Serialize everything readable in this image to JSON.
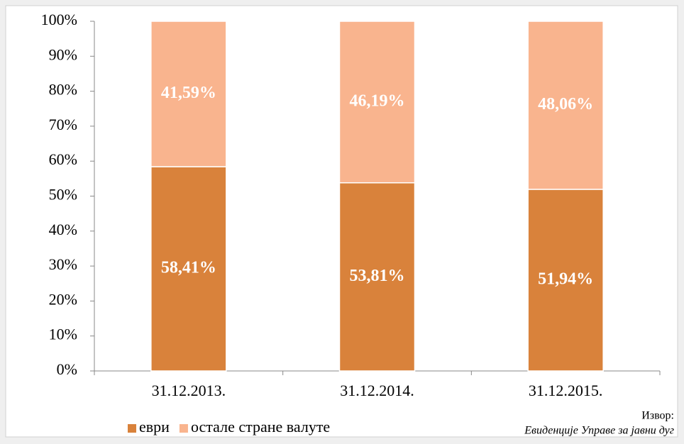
{
  "chart_data": {
    "type": "stacked_bar",
    "categories": [
      "31.12.2013.",
      "31.12.2014.",
      "31.12.2015."
    ],
    "series": [
      {
        "name": "еври",
        "color": "#d9823b",
        "values": [
          58.41,
          53.81,
          51.94
        ],
        "value_labels": [
          "58,41%",
          "53,81%",
          "51,94%"
        ]
      },
      {
        "name": "остале стране валуте",
        "color": "#f9b48e",
        "values": [
          41.59,
          46.19,
          48.06
        ],
        "value_labels": [
          "41,59%",
          "46,19%",
          "48,06%"
        ]
      }
    ],
    "ylim": [
      0,
      100
    ],
    "yticks": [
      {
        "value": 0,
        "label": "0%"
      },
      {
        "value": 10,
        "label": "10%"
      },
      {
        "value": 20,
        "label": "20%"
      },
      {
        "value": 30,
        "label": "30%"
      },
      {
        "value": 40,
        "label": "40%"
      },
      {
        "value": 50,
        "label": "50%"
      },
      {
        "value": 60,
        "label": "60%"
      },
      {
        "value": 70,
        "label": "70%"
      },
      {
        "value": 80,
        "label": "80%"
      },
      {
        "value": 90,
        "label": "90%"
      },
      {
        "value": 100,
        "label": "100%"
      }
    ],
    "legend": "bottom-left",
    "annotations": [
      "Извор:",
      "Евиденције Управе за јавни дуг"
    ]
  }
}
